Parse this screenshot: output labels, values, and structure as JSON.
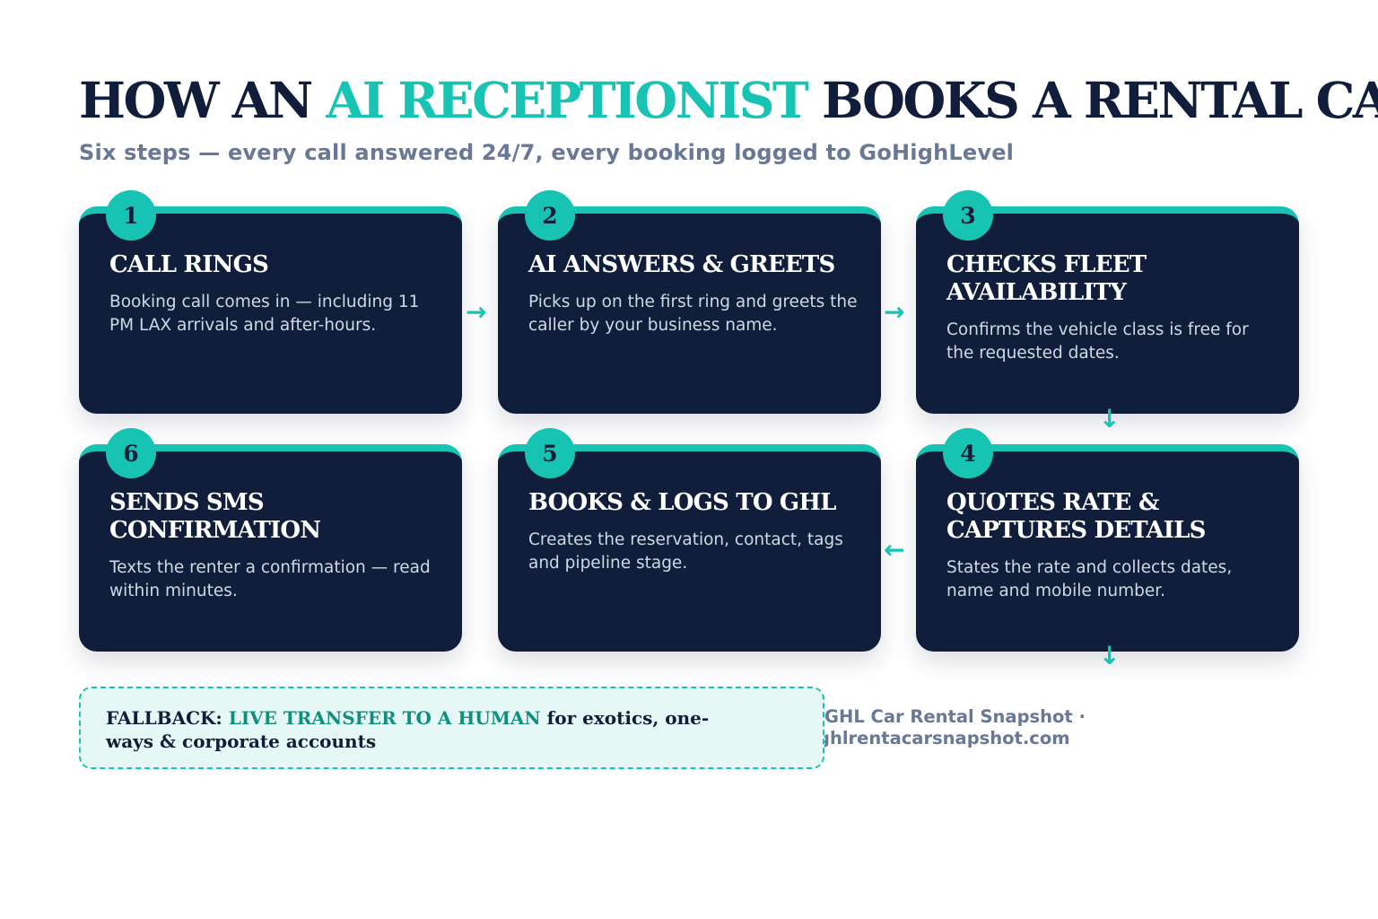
{
  "header": {
    "title_prefix": "HOW AN",
    "title_highlight": "AI RECEPTIONIST",
    "title_suffix": "BOOKS A RENTAL CAR",
    "subtitle": "Six steps — every call answered 24/7, every booking logged to GoHighLevel"
  },
  "steps": [
    {
      "number": "1",
      "title": "CALL RINGS",
      "description": "Booking call comes in — including 11 PM LAX arrivals and after-hours."
    },
    {
      "number": "2",
      "title": "AI ANSWERS & GREETS",
      "description": "Picks up on the first ring and greets the caller by your business name."
    },
    {
      "number": "3",
      "title": "CHECKS FLEET AVAILABILITY",
      "description": "Confirms the vehicle class is free for the requested dates."
    },
    {
      "number": "4",
      "title": "QUOTES RATE & CAPTURES DETAILS",
      "description": "States the rate and collects dates, name and mobile number."
    },
    {
      "number": "5",
      "title": "BOOKS & LOGS TO GHL",
      "description": "Creates the reservation, contact, tags and pipeline stage."
    },
    {
      "number": "6",
      "title": "SENDS SMS CONFIRMATION",
      "description": "Texts the renter a confirmation — read within minutes."
    }
  ],
  "arrows": {
    "right": "→",
    "left": "←",
    "down": "↓"
  },
  "fallback": {
    "label": "FALLBACK:",
    "highlight": "LIVE TRANSFER TO A HUMAN",
    "text": "for exotics, one-ways & corporate accounts"
  },
  "footer": {
    "line1": "GHL Car Rental Snapshot ·",
    "line2": "ghlrentacarsnapshot.com"
  },
  "colors": {
    "navy": "#101e3c",
    "teal": "#17c3b2",
    "muted": "#687895"
  }
}
